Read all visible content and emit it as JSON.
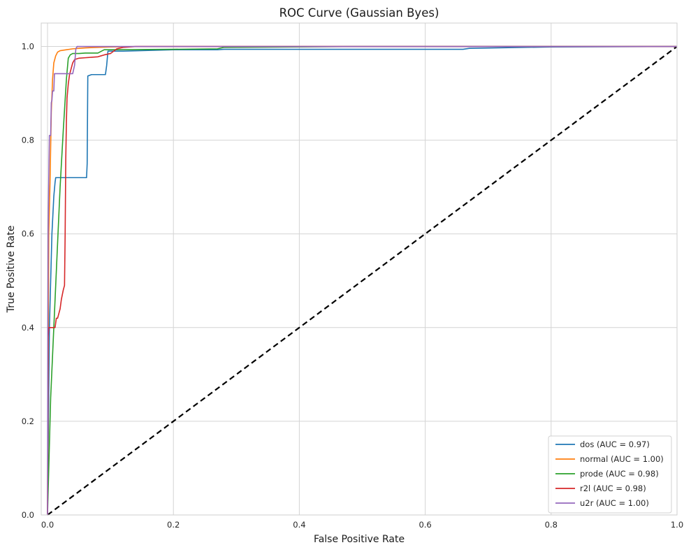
{
  "chart_data": {
    "type": "line",
    "title": "ROC Curve (Gaussian Byes)",
    "xlabel": "False Positive Rate",
    "ylabel": "True Positive Rate",
    "xlim": [
      -0.01,
      1.0
    ],
    "ylim": [
      0.0,
      1.05
    ],
    "xticks": [
      "0.0",
      "0.2",
      "0.4",
      "0.6",
      "0.8",
      "1.0"
    ],
    "yticks": [
      "0.0",
      "0.2",
      "0.4",
      "0.6",
      "0.8",
      "1.0"
    ],
    "xtick_values": [
      0.0,
      0.2,
      0.4,
      0.6,
      0.8,
      1.0
    ],
    "ytick_values": [
      0.0,
      0.2,
      0.4,
      0.6,
      0.8,
      1.0
    ],
    "grid": true,
    "legend_position": "bottom-right",
    "series": [
      {
        "name": "dos (AUC = 0.97)",
        "color": "#1f77b4",
        "x": [
          0.0,
          0.003,
          0.007,
          0.01,
          0.012,
          0.013,
          0.062,
          0.063,
          0.064,
          0.07,
          0.092,
          0.094,
          0.096,
          0.12,
          0.2,
          0.27,
          0.28,
          0.66,
          0.67,
          0.8,
          1.0
        ],
        "y": [
          0.0,
          0.4,
          0.6,
          0.68,
          0.71,
          0.72,
          0.72,
          0.75,
          0.937,
          0.94,
          0.94,
          0.96,
          0.99,
          0.99,
          0.993,
          0.993,
          0.994,
          0.994,
          0.996,
          0.999,
          1.0
        ]
      },
      {
        "name": "normal (AUC = 1.00)",
        "color": "#ff7f0e",
        "x": [
          0.0,
          0.002,
          0.004,
          0.006,
          0.008,
          0.01,
          0.013,
          0.016,
          0.02,
          0.03,
          0.04,
          0.05,
          0.06,
          0.08,
          0.1,
          0.15,
          0.3,
          1.0
        ],
        "y": [
          0.0,
          0.6,
          0.71,
          0.86,
          0.93,
          0.965,
          0.98,
          0.988,
          0.991,
          0.993,
          0.995,
          0.996,
          0.997,
          0.998,
          0.999,
          1.0,
          1.0,
          1.0
        ],
        "step": false
      },
      {
        "name": "prode (AUC = 0.98)",
        "color": "#2ca02c",
        "x": [
          0.0,
          0.005,
          0.01,
          0.015,
          0.02,
          0.025,
          0.03,
          0.033,
          0.036,
          0.04,
          0.05,
          0.06,
          0.08,
          0.09,
          0.1,
          0.2,
          0.27,
          0.28,
          0.5,
          1.0
        ],
        "y": [
          0.0,
          0.25,
          0.4,
          0.55,
          0.7,
          0.82,
          0.93,
          0.975,
          0.982,
          0.985,
          0.985,
          0.986,
          0.986,
          0.993,
          0.993,
          0.994,
          0.995,
          0.998,
          1.0,
          1.0
        ]
      },
      {
        "name": "r2l (AUC = 0.98)",
        "color": "#d62728",
        "x": [
          0.0,
          0.001,
          0.002,
          0.008,
          0.012,
          0.014,
          0.016,
          0.018,
          0.02,
          0.022,
          0.025,
          0.027,
          0.028,
          0.029,
          0.03,
          0.031,
          0.033,
          0.035,
          0.037,
          0.04,
          0.043,
          0.045,
          0.05,
          0.06,
          0.07,
          0.08,
          0.085,
          0.09,
          0.1,
          0.11,
          0.12,
          0.14,
          0.3,
          1.0
        ],
        "y": [
          0.0,
          0.38,
          0.4,
          0.4,
          0.4,
          0.42,
          0.42,
          0.43,
          0.44,
          0.46,
          0.48,
          0.49,
          0.6,
          0.76,
          0.84,
          0.89,
          0.92,
          0.94,
          0.95,
          0.965,
          0.972,
          0.973,
          0.975,
          0.976,
          0.977,
          0.978,
          0.98,
          0.982,
          0.985,
          0.995,
          0.998,
          1.0,
          1.0,
          1.0
        ]
      },
      {
        "name": "u2r (AUC = 1.00)",
        "color": "#9467bd",
        "x": [
          0.0,
          0.0005,
          0.001,
          0.002,
          0.003,
          0.005,
          0.006,
          0.007,
          0.008,
          0.009,
          0.01,
          0.011,
          0.012,
          0.04,
          0.043,
          0.045,
          0.047,
          0.06,
          1.0
        ],
        "y": [
          0.0,
          0.4,
          0.6,
          0.72,
          0.81,
          0.81,
          0.88,
          0.885,
          0.905,
          0.905,
          0.905,
          0.942,
          0.942,
          0.942,
          0.96,
          0.995,
          1.0,
          1.0,
          1.0
        ]
      }
    ],
    "reference_line": {
      "x": [
        0.0,
        1.0
      ],
      "y": [
        0.0,
        1.0
      ],
      "color": "#000000",
      "style": "dashed"
    }
  }
}
